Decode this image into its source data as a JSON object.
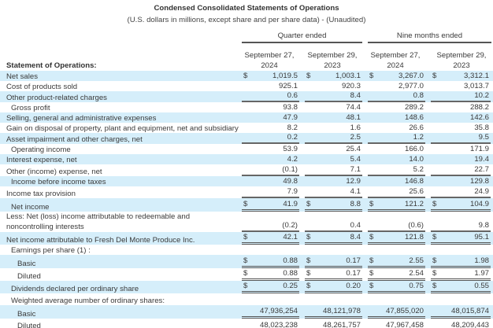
{
  "title": "Condensed Consolidated Statements of Operations",
  "subtitle": "(U.S. dollars in millions, except share and per share data) - (Unaudited)",
  "groups": [
    "Quarter ended",
    "Nine months ended"
  ],
  "columns": [
    {
      "line1": "September 27,",
      "line2": "2024"
    },
    {
      "line1": "September 29,",
      "line2": "2023"
    },
    {
      "line1": "September 27,",
      "line2": "2024"
    },
    {
      "line1": "September 29,",
      "line2": "2023"
    }
  ],
  "section_label": "Statement of Operations:",
  "rows": [
    {
      "label": "Net sales",
      "d": "$",
      "v": [
        "1,019.5",
        "1,003.1",
        "3,267.0",
        "3,312.1"
      ]
    },
    {
      "label": "Cost of products sold",
      "v": [
        "925.1",
        "920.3",
        "2,977.0",
        "3,013.7"
      ]
    },
    {
      "label": "Other product-related charges",
      "v": [
        "0.6",
        "8.4",
        "0.8",
        "10.2"
      ]
    },
    {
      "label": "Gross profit",
      "v": [
        "93.8",
        "74.4",
        "289.2",
        "288.2"
      ]
    },
    {
      "label": "Selling, general and administrative expenses",
      "v": [
        "47.9",
        "48.1",
        "148.6",
        "142.6"
      ]
    },
    {
      "label": "Gain on disposal of property, plant and equipment, net and subsidiary",
      "v": [
        "8.2",
        "1.6",
        "26.6",
        "35.8"
      ]
    },
    {
      "label": "Asset impairment and other charges, net",
      "v": [
        "0.2",
        "2.5",
        "1.2",
        "9.5"
      ]
    },
    {
      "label": "Operating income",
      "v": [
        "53.9",
        "25.4",
        "166.0",
        "171.9"
      ]
    },
    {
      "label": "Interest expense, net",
      "v": [
        "4.2",
        "5.4",
        "14.0",
        "19.4"
      ]
    },
    {
      "label": "Other (income) expense, net",
      "v": [
        "(0.1)",
        "7.1",
        "5.2",
        "22.7"
      ]
    },
    {
      "label": "Income before income taxes",
      "v": [
        "49.8",
        "12.9",
        "146.8",
        "129.8"
      ]
    },
    {
      "label": "Income tax provision",
      "v": [
        "7.9",
        "4.1",
        "25.6",
        "24.9"
      ]
    },
    {
      "label": "Net income",
      "d": "$",
      "v": [
        "41.9",
        "8.8",
        "121.2",
        "104.9"
      ]
    },
    {
      "label": "Less: Net (loss) income attributable to redeemable and noncontrolling interests",
      "v": [
        "(0.2)",
        "0.4",
        "(0.6)",
        "9.8"
      ]
    },
    {
      "label": "Net income attributable to Fresh Del Monte Produce Inc.",
      "d": "$",
      "v": [
        "42.1",
        "8.4",
        "121.8",
        "95.1"
      ]
    },
    {
      "label": "Earnings per share (1) :"
    },
    {
      "label": "Basic",
      "d": "$",
      "v": [
        "0.88",
        "0.17",
        "2.55",
        "1.98"
      ]
    },
    {
      "label": "Diluted",
      "d": "$",
      "v": [
        "0.88",
        "0.17",
        "2.54",
        "1.97"
      ]
    },
    {
      "label": "Dividends declared per ordinary share",
      "d": "$",
      "v": [
        "0.25",
        "0.20",
        "0.75",
        "0.55"
      ]
    },
    {
      "label": "Weighted average number of ordinary shares:"
    },
    {
      "label": "Basic",
      "v": [
        "47,936,254",
        "48,121,978",
        "47,855,020",
        "48,015,874"
      ]
    },
    {
      "label": "Diluted",
      "v": [
        "48,023,238",
        "48,261,757",
        "47,967,458",
        "48,209,443"
      ]
    }
  ]
}
